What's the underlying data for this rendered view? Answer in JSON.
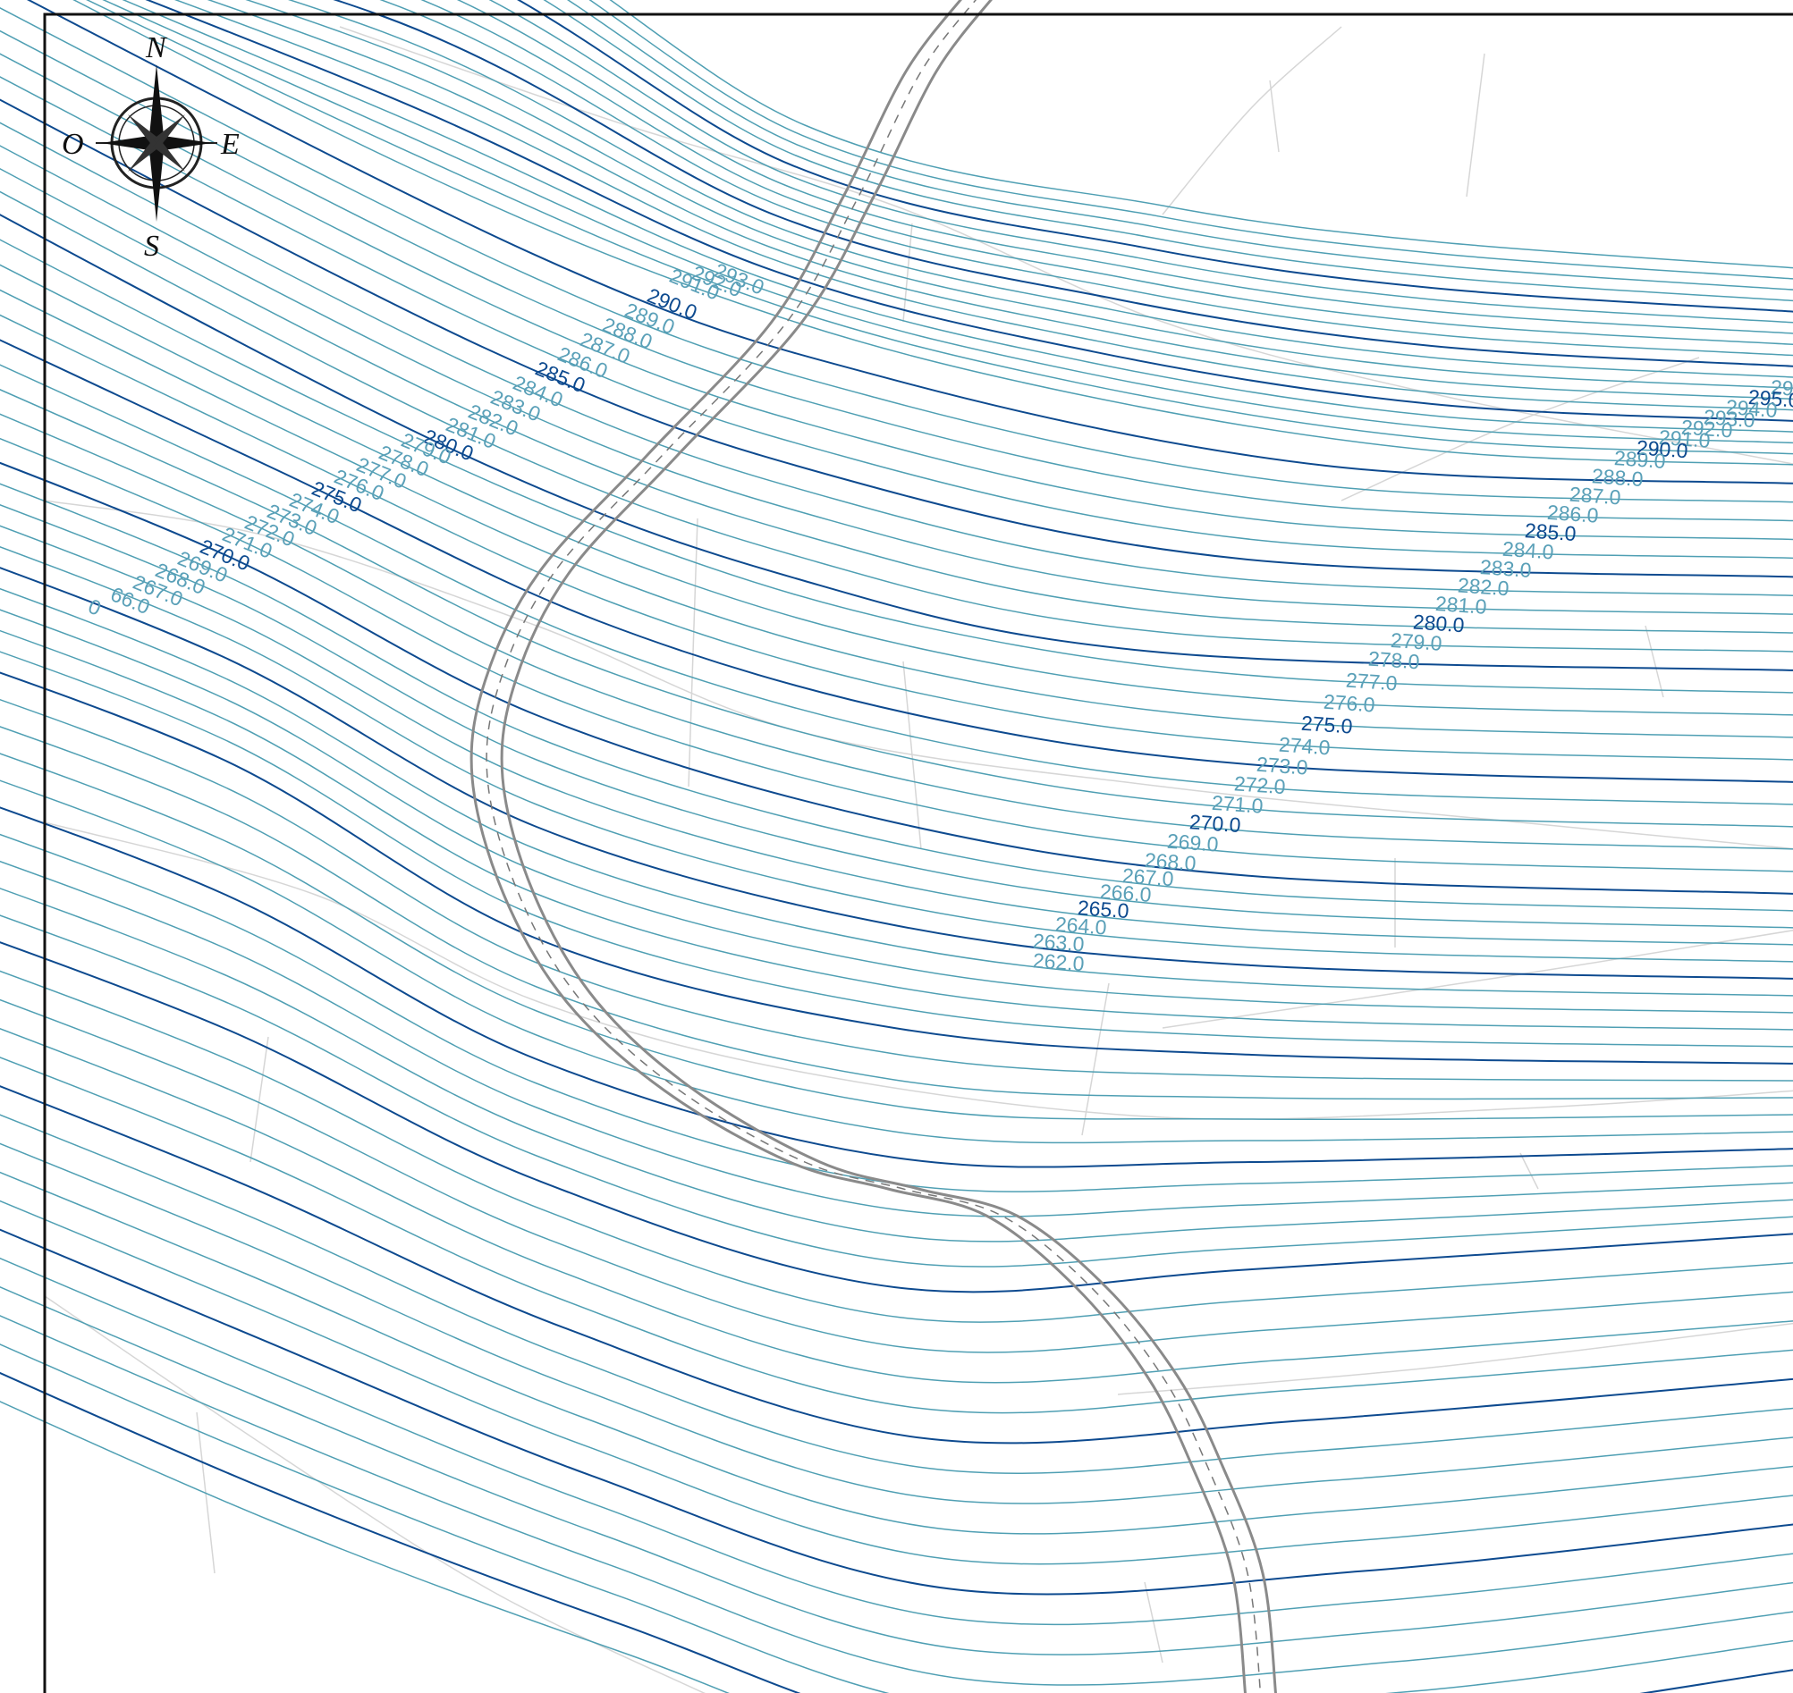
{
  "compass": {
    "north": "N",
    "south": "S",
    "east": "E",
    "west": "O"
  },
  "colors": {
    "minor_contour": "#4f9fb3",
    "major_contour": "#0d4a8f",
    "minor_label": "#5aa0b8",
    "major_label": "#0d4a8f",
    "road": "#8a8a8a",
    "background_lines": "#d6d6d6"
  },
  "contours": {
    "interval": 1.0,
    "major_interval": 5.0,
    "left_labels": [
      "293.0",
      "292.0",
      "291.0",
      "290.0",
      "289.0",
      "288.0",
      "287.0",
      "286.0",
      "285.0",
      "284.0",
      "283.0",
      "282.0",
      "281.0",
      "280.0",
      "279.0",
      "278.0",
      "277.0",
      "276.0",
      "275.0",
      "274.0",
      "273.0",
      "272.0",
      "271.0",
      "270.0",
      "269.0",
      "268.0",
      "267.0",
      "66.0",
      "0"
    ],
    "right_labels": [
      "29",
      "295.0",
      "294.0",
      "293.0",
      "292.0",
      "291.0",
      "290.0",
      "289.0",
      "288.0",
      "287.0",
      "286.0",
      "285.0",
      "284.0",
      "283.0",
      "282.0",
      "281.0",
      "280.0",
      "279.0",
      "278.0",
      "277.0",
      "276.0",
      "275.0",
      "274.0",
      "273.0",
      "272.0",
      "271.0",
      "270.0",
      "269.0",
      "268.0",
      "267.0",
      "266.0",
      "265.0",
      "264.0",
      "263.0",
      "262.0"
    ]
  }
}
